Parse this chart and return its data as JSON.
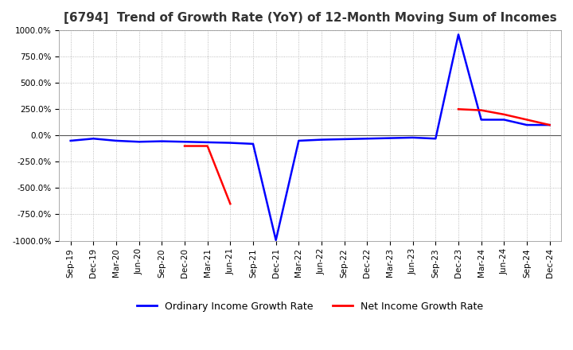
{
  "title": "[6794]  Trend of Growth Rate (YoY) of 12-Month Moving Sum of Incomes",
  "title_fontsize": 11,
  "background_color": "#ffffff",
  "grid_color": "#aaaaaa",
  "ylim": [
    -1000,
    1000
  ],
  "yticks": [
    -1000,
    -750,
    -500,
    -250,
    0,
    250,
    500,
    750,
    1000
  ],
  "ytick_labels": [
    "-1000.0%",
    "-750.0%",
    "-500.0%",
    "-250.0%",
    "0.0%",
    "250.0%",
    "500.0%",
    "750.0%",
    "1000.0%"
  ],
  "all_x_labels": [
    "Sep-19",
    "Dec-19",
    "Mar-20",
    "Jun-20",
    "Sep-20",
    "Dec-20",
    "Mar-21",
    "Jun-21",
    "Sep-21",
    "Dec-21",
    "Mar-22",
    "Jun-22",
    "Sep-22",
    "Dec-22",
    "Mar-23",
    "Jun-23",
    "Sep-23",
    "Dec-23",
    "Mar-24",
    "Jun-24",
    "Sep-24",
    "Dec-24"
  ],
  "ordinary_income": {
    "label": "Ordinary Income Growth Rate",
    "color": "#0000ff",
    "x": [
      "Sep-19",
      "Dec-19",
      "Mar-20",
      "Jun-20",
      "Sep-20",
      "Dec-20",
      "Mar-21",
      "Jun-21",
      "Sep-21",
      "Dec-21",
      "Mar-22",
      "Jun-22",
      "Sep-22",
      "Dec-22",
      "Mar-23",
      "Jun-23",
      "Sep-23",
      "Dec-23",
      "Mar-24",
      "Jun-24",
      "Sep-24",
      "Dec-24"
    ],
    "y": [
      -50,
      -30,
      -50,
      -60,
      -55,
      -60,
      -65,
      -70,
      -80,
      -995,
      -50,
      -40,
      -35,
      -30,
      -25,
      -20,
      -30,
      960,
      150,
      150,
      100,
      100
    ]
  },
  "net_income": {
    "label": "Net Income Growth Rate",
    "color": "#ff0000",
    "x": [
      "Dec-20",
      "Mar-21",
      "Jun-21",
      "Dec-23",
      "Mar-24",
      "Jun-24",
      "Sep-24",
      "Dec-24"
    ],
    "y": [
      -100,
      -100,
      -650,
      250,
      240,
      200,
      150,
      100
    ]
  },
  "legend_fontsize": 9,
  "tick_fontsize": 7.5
}
